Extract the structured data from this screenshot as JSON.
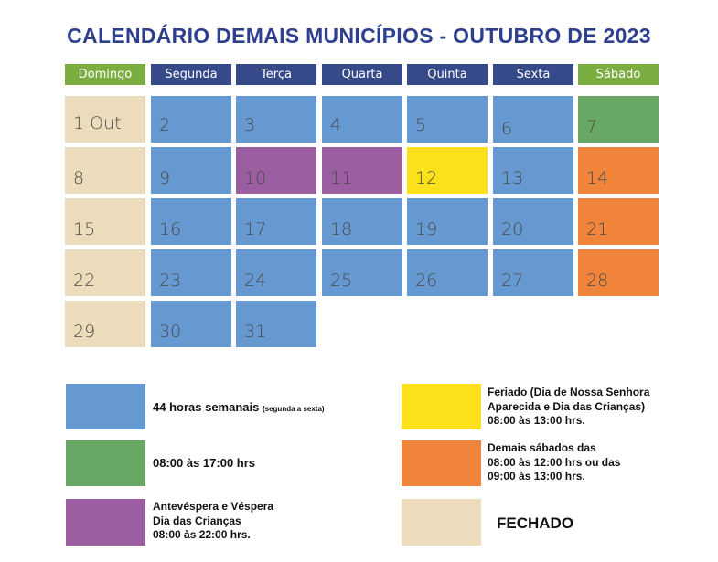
{
  "title": "CALENDÁRIO DEMAIS MUNICÍPIOS - OUTUBRO DE 2023",
  "colors": {
    "blue": "#6699d2",
    "green": "#68a864",
    "purple": "#9a5ea1",
    "yellow": "#fbe01a",
    "orange": "#f0843a",
    "beige": "#ecdcbc",
    "navy": "#364a8a",
    "olive": "#7cad40"
  },
  "weekdays": [
    {
      "label": "Domingo",
      "color": "olive"
    },
    {
      "label": "Segunda",
      "color": "navy"
    },
    {
      "label": "Terça",
      "color": "navy"
    },
    {
      "label": "Quarta",
      "color": "navy"
    },
    {
      "label": "Quinta",
      "color": "navy"
    },
    {
      "label": "Sexta",
      "color": "navy"
    },
    {
      "label": "Sábado",
      "color": "olive"
    }
  ],
  "weeks": [
    [
      {
        "d": "1 Out",
        "c": "beige"
      },
      {
        "d": "2",
        "c": "blue"
      },
      {
        "d": "3",
        "c": "blue"
      },
      {
        "d": "4",
        "c": "blue"
      },
      {
        "d": "5",
        "c": "blue"
      },
      {
        "d": "6",
        "c": "blue"
      },
      {
        "d": "7",
        "c": "green"
      }
    ],
    [
      {
        "d": "8",
        "c": "beige"
      },
      {
        "d": "9",
        "c": "blue"
      },
      {
        "d": "10",
        "c": "purple"
      },
      {
        "d": "11",
        "c": "purple"
      },
      {
        "d": "12",
        "c": "yellow"
      },
      {
        "d": "13",
        "c": "blue"
      },
      {
        "d": "14",
        "c": "orange"
      }
    ],
    [
      {
        "d": "15",
        "c": "beige"
      },
      {
        "d": "16",
        "c": "blue"
      },
      {
        "d": "17",
        "c": "blue"
      },
      {
        "d": "18",
        "c": "blue"
      },
      {
        "d": "19",
        "c": "blue"
      },
      {
        "d": "20",
        "c": "blue"
      },
      {
        "d": "21",
        "c": "orange"
      }
    ],
    [
      {
        "d": "22",
        "c": "beige"
      },
      {
        "d": "23",
        "c": "blue"
      },
      {
        "d": "24",
        "c": "blue"
      },
      {
        "d": "25",
        "c": "blue"
      },
      {
        "d": "26",
        "c": "blue"
      },
      {
        "d": "27",
        "c": "blue"
      },
      {
        "d": "28",
        "c": "orange"
      }
    ],
    [
      {
        "d": "29",
        "c": "beige"
      },
      {
        "d": "30",
        "c": "blue"
      },
      {
        "d": "31",
        "c": "blue"
      }
    ]
  ],
  "legend": {
    "blue": {
      "main": "44 horas semanais",
      "note": "(segunda a sexta)"
    },
    "green": {
      "text": "08:00 às 17:00 hrs"
    },
    "purple": {
      "l1": "Antevéspera e Véspera",
      "l2": "Dia das Crianças",
      "l3": "08:00 às 22:00 hrs."
    },
    "yellow": {
      "l1": "Feriado (Dia de Nossa Senhora",
      "l2": "Aparecida e Dia das Crianças)",
      "l3": "08:00 às 13:00 hrs."
    },
    "orange": {
      "l1": "Demais sábados das",
      "l2": "08:00 às 12:00 hrs ou das",
      "l3": "09:00 às 13:00 hrs."
    },
    "beige": {
      "text": "FECHADO"
    }
  }
}
